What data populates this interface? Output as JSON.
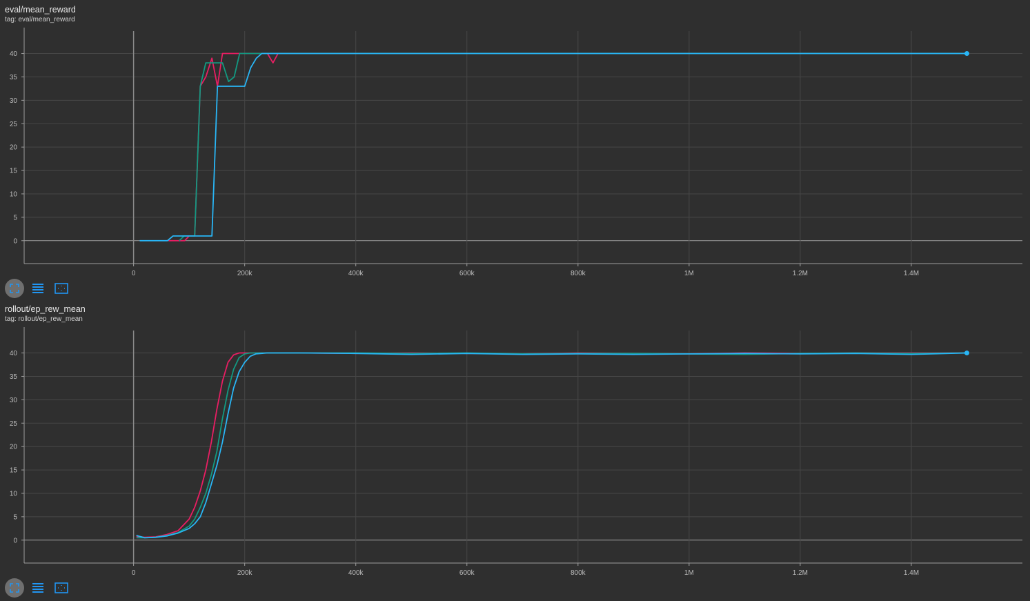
{
  "colors": {
    "background": "#2f2f2f",
    "run_pink": "#e91e63",
    "run_green": "#129a82",
    "run_blue": "#29b6f6",
    "grid": "#474747",
    "axis": "#9e9e9e"
  },
  "toolbar_icons": [
    "fit-domain-icon",
    "toggle-log-scale-icon",
    "expand-chart-icon"
  ],
  "chart_data": [
    {
      "type": "line",
      "title": "eval/mean_reward",
      "subtitle": "tag: eval/mean_reward",
      "xlim": [
        -197000,
        1600000
      ],
      "ylim": [
        -4.9,
        44.8
      ],
      "xticks": [
        0,
        200000,
        400000,
        600000,
        800000,
        1000000,
        1200000,
        1400000
      ],
      "xtick_labels": [
        "0",
        "200k",
        "400k",
        "600k",
        "800k",
        "1M",
        "1.2M",
        "1.4M"
      ],
      "yticks": [
        0,
        5,
        10,
        15,
        20,
        25,
        30,
        35,
        40
      ],
      "ytick_labels": [
        "0",
        "5",
        "10",
        "15",
        "20",
        "25",
        "30",
        "35",
        "40"
      ],
      "grid": true,
      "series": [
        {
          "color": "#e91e63",
          "x": [
            63000,
            92000,
            100000,
            110000,
            120000,
            130000,
            141000,
            151000,
            160000,
            241000,
            251000,
            260000,
            1500000
          ],
          "y": [
            0,
            0,
            1,
            1,
            33,
            35,
            39,
            33,
            40,
            40,
            38,
            40,
            40
          ]
        },
        {
          "color": "#129a82",
          "x": [
            82000,
            91000,
            110000,
            120000,
            130000,
            160000,
            171000,
            181000,
            191000,
            1500000
          ],
          "y": [
            0,
            1,
            1,
            33,
            38,
            38,
            34,
            35,
            40,
            40
          ]
        },
        {
          "color": "#29b6f6",
          "x": [
            11000,
            61000,
            71000,
            141000,
            151000,
            200000,
            211000,
            221000,
            231000,
            1500000
          ],
          "y": [
            0,
            0,
            1,
            1,
            33,
            33,
            37,
            39,
            40,
            40
          ]
        }
      ]
    },
    {
      "type": "line",
      "title": "rollout/ep_rew_mean",
      "subtitle": "tag: rollout/ep_rew_mean",
      "xlim": [
        -197000,
        1600000
      ],
      "ylim": [
        -4.9,
        44.8
      ],
      "xticks": [
        0,
        200000,
        400000,
        600000,
        800000,
        1000000,
        1200000,
        1400000
      ],
      "xtick_labels": [
        "0",
        "200k",
        "400k",
        "600k",
        "800k",
        "1M",
        "1.2M",
        "1.4M"
      ],
      "yticks": [
        0,
        5,
        10,
        15,
        20,
        25,
        30,
        35,
        40
      ],
      "ytick_labels": [
        "0",
        "5",
        "10",
        "15",
        "20",
        "25",
        "30",
        "35",
        "40"
      ],
      "grid": true,
      "series": [
        {
          "color": "#e91e63",
          "x": [
            5000,
            20000,
            40000,
            60000,
            80000,
            100000,
            110000,
            120000,
            130000,
            140000,
            150000,
            160000,
            170000,
            180000,
            190000,
            200000,
            300000,
            400000,
            500000,
            600000,
            700000,
            800000,
            900000,
            1000000,
            1100000,
            1200000,
            1300000,
            1400000,
            1500000
          ],
          "y": [
            0.8,
            0.6,
            0.7,
            1.2,
            2,
            4.5,
            7,
            10.5,
            15,
            21,
            28,
            34,
            38,
            39.6,
            40,
            40,
            40,
            39.9,
            40,
            39.9,
            39.8,
            40,
            39.9,
            39.8,
            40,
            39.9,
            40,
            40,
            40
          ]
        },
        {
          "color": "#129a82",
          "x": [
            5000,
            20000,
            40000,
            60000,
            80000,
            100000,
            110000,
            120000,
            130000,
            140000,
            150000,
            160000,
            170000,
            180000,
            190000,
            200000,
            210000,
            300000,
            400000,
            500000,
            600000,
            700000,
            800000,
            900000,
            1000000,
            1100000,
            1200000,
            1300000,
            1400000,
            1500000
          ],
          "y": [
            0.5,
            0.5,
            0.6,
            1,
            1.6,
            3,
            4.5,
            7,
            10,
            14,
            19,
            26,
            32,
            36.5,
            39,
            39.8,
            40,
            40,
            40,
            39.9,
            40,
            39.8,
            39.9,
            39.9,
            39.8,
            39.7,
            39.9,
            40,
            39.9,
            40
          ]
        },
        {
          "color": "#29b6f6",
          "x": [
            5000,
            20000,
            40000,
            60000,
            80000,
            100000,
            110000,
            120000,
            130000,
            140000,
            150000,
            160000,
            170000,
            180000,
            190000,
            200000,
            210000,
            220000,
            240000,
            300000,
            400000,
            500000,
            600000,
            700000,
            800000,
            900000,
            1000000,
            1100000,
            1200000,
            1300000,
            1400000,
            1500000
          ],
          "y": [
            1,
            0.5,
            0.6,
            0.9,
            1.5,
            2.5,
            3.5,
            5,
            8,
            12,
            16,
            21,
            27,
            32.5,
            36,
            38,
            39.3,
            39.8,
            40,
            40,
            39.9,
            39.7,
            39.9,
            39.7,
            39.8,
            39.7,
            39.8,
            39.9,
            39.8,
            39.9,
            39.7,
            40
          ]
        }
      ]
    }
  ]
}
